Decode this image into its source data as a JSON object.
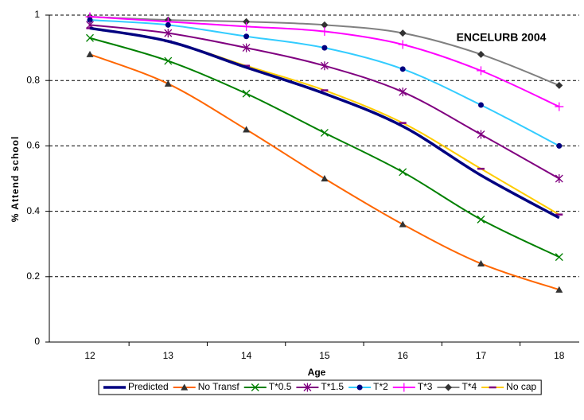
{
  "chart_data": {
    "type": "line",
    "annotation": "ENCELURB 2004",
    "x_label": "Age",
    "y_label": "% Attend school",
    "categories": [
      "12",
      "13",
      "14",
      "15",
      "16",
      "17",
      "18"
    ],
    "ylim": [
      0,
      1
    ],
    "yticks": [
      0,
      0.2,
      0.4,
      0.6,
      0.8,
      1
    ],
    "grid": true,
    "legend": "bottom",
    "series": [
      {
        "name": "Predicted",
        "color": "#000080",
        "marker": "none",
        "marker_color": "#000080",
        "values": [
          0.96,
          0.92,
          0.84,
          0.76,
          0.66,
          0.51,
          0.38
        ]
      },
      {
        "name": "No Transf",
        "color": "#ff6600",
        "marker": "triangle",
        "marker_color": "#333333",
        "values": [
          0.88,
          0.79,
          0.65,
          0.5,
          0.36,
          0.24,
          0.16
        ]
      },
      {
        "name": "T*0.5",
        "color": "#008000",
        "marker": "x",
        "marker_color": "#008000",
        "values": [
          0.93,
          0.86,
          0.76,
          0.64,
          0.52,
          0.375,
          0.26
        ]
      },
      {
        "name": "T*1.5",
        "color": "#800080",
        "marker": "star",
        "marker_color": "#800080",
        "values": [
          0.97,
          0.945,
          0.9,
          0.845,
          0.765,
          0.635,
          0.5
        ]
      },
      {
        "name": "T*2",
        "color": "#33ccff",
        "marker": "circle",
        "marker_color": "#000080",
        "values": [
          0.985,
          0.97,
          0.935,
          0.9,
          0.835,
          0.725,
          0.6
        ]
      },
      {
        "name": "T*3",
        "color": "#ff00ff",
        "marker": "plus",
        "marker_color": "#ff00ff",
        "values": [
          0.995,
          0.98,
          0.965,
          0.95,
          0.91,
          0.83,
          0.72
        ]
      },
      {
        "name": "T*4",
        "color": "#808080",
        "marker": "diamond",
        "marker_color": "#333333",
        "values": [
          0.995,
          0.985,
          0.98,
          0.97,
          0.945,
          0.88,
          0.785
        ]
      },
      {
        "name": "No cap",
        "color": "#ffcc00",
        "marker": "dash",
        "marker_color": "#800080",
        "values": [
          0.96,
          0.92,
          0.845,
          0.77,
          0.67,
          0.53,
          0.39
        ]
      }
    ]
  }
}
